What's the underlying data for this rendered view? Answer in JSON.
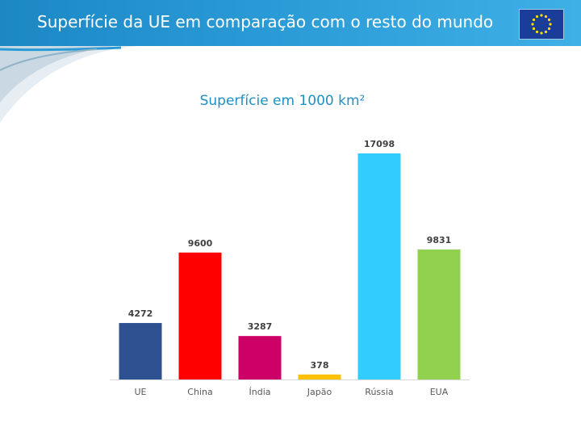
{
  "header": {
    "title": "Superfície da UE em comparação com o resto do mundo",
    "flag_icon": "eu-flag-icon"
  },
  "colors": {
    "header_blue": "#1b88c4",
    "subtitle": "#1f8fc2"
  },
  "chart_data": {
    "type": "bar",
    "title": "Superfície em 1000 km²",
    "categories": [
      "UE",
      "China",
      "Índia",
      "Japão",
      "Rússia",
      "EUA"
    ],
    "values": [
      4272,
      9600,
      3287,
      378,
      17098,
      9831
    ],
    "colors": [
      "#2e5191",
      "#ff0000",
      "#cc0066",
      "#ffc000",
      "#33ccff",
      "#92d050"
    ],
    "ylim": [
      0,
      17098
    ],
    "grid": false,
    "legend": "none",
    "data_labels": true
  }
}
